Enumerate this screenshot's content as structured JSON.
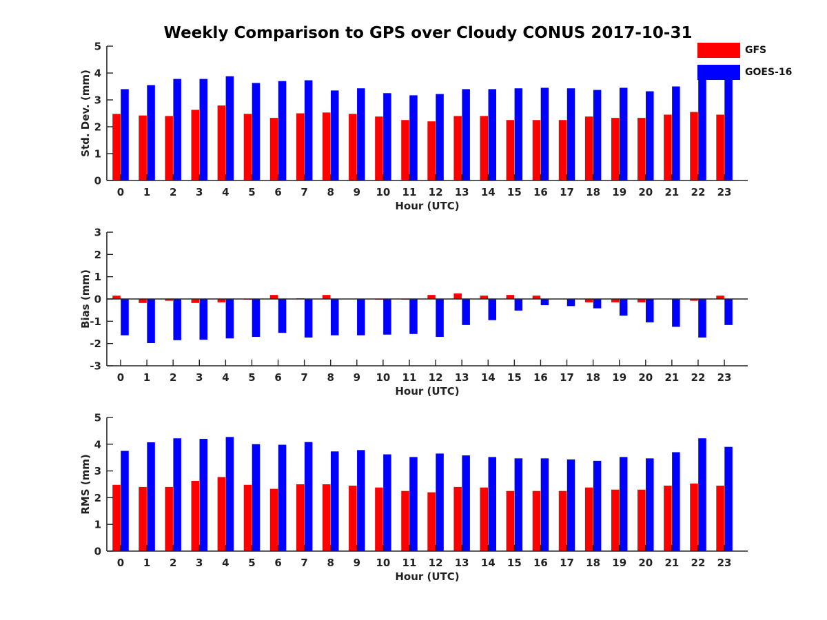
{
  "figure_title": "Weekly Comparison to GPS over Cloudy CONUS 2017-10-31",
  "colors": {
    "gfs": "#ff0000",
    "goes": "#0000ff",
    "axis": "#222222",
    "text": "#111111"
  },
  "legend": [
    {
      "name": "GFS",
      "color": "#ff0000"
    },
    {
      "name": "GOES-16",
      "color": "#0000ff"
    }
  ],
  "chart_data": [
    {
      "type": "bar",
      "xlabel": "Hour (UTC)",
      "ylabel": "Std. Dev. (mm)",
      "categories": [
        "0",
        "1",
        "2",
        "3",
        "4",
        "5",
        "6",
        "7",
        "8",
        "9",
        "10",
        "11",
        "12",
        "13",
        "14",
        "15",
        "16",
        "17",
        "18",
        "19",
        "20",
        "21",
        "22",
        "23"
      ],
      "ylim": [
        0,
        5
      ],
      "yticks": [
        0,
        1,
        2,
        3,
        4,
        5
      ],
      "grid": false,
      "series": [
        {
          "name": "GFS",
          "color": "#ff0000",
          "values": [
            2.48,
            2.42,
            2.4,
            2.63,
            2.79,
            2.48,
            2.33,
            2.5,
            2.53,
            2.48,
            2.38,
            2.25,
            2.2,
            2.4,
            2.4,
            2.25,
            2.25,
            2.25,
            2.38,
            2.33,
            2.33,
            2.45,
            2.55,
            2.45
          ]
        },
        {
          "name": "GOES-16",
          "color": "#0000ff",
          "values": [
            3.4,
            3.55,
            3.78,
            3.78,
            3.88,
            3.63,
            3.7,
            3.73,
            3.35,
            3.43,
            3.25,
            3.17,
            3.22,
            3.4,
            3.4,
            3.43,
            3.45,
            3.43,
            3.37,
            3.45,
            3.32,
            3.5,
            3.83,
            3.87
          ]
        }
      ]
    },
    {
      "type": "bar",
      "xlabel": "Hour (UTC)",
      "ylabel": "Bias (mm)",
      "categories": [
        "0",
        "1",
        "2",
        "3",
        "4",
        "5",
        "6",
        "7",
        "8",
        "9",
        "10",
        "11",
        "12",
        "13",
        "14",
        "15",
        "16",
        "17",
        "18",
        "19",
        "20",
        "21",
        "22",
        "23"
      ],
      "ylim": [
        -3,
        3
      ],
      "yticks": [
        -3,
        -2,
        -1,
        0,
        1,
        2,
        3
      ],
      "grid": false,
      "series": [
        {
          "name": "GFS",
          "color": "#ff0000",
          "values": [
            0.15,
            -0.18,
            -0.08,
            -0.18,
            -0.15,
            -0.03,
            0.18,
            0.03,
            0.18,
            0.0,
            -0.03,
            -0.03,
            0.18,
            0.25,
            0.15,
            0.18,
            0.15,
            0.0,
            -0.15,
            -0.15,
            -0.15,
            0.0,
            -0.08,
            0.15
          ]
        },
        {
          "name": "GOES-16",
          "color": "#0000ff",
          "values": [
            -1.63,
            -1.98,
            -1.85,
            -1.83,
            -1.77,
            -1.7,
            -1.52,
            -1.73,
            -1.63,
            -1.63,
            -1.6,
            -1.57,
            -1.7,
            -1.17,
            -0.95,
            -0.52,
            -0.28,
            -0.32,
            -0.42,
            -0.75,
            -1.05,
            -1.25,
            -1.73,
            -1.17
          ]
        }
      ]
    },
    {
      "type": "bar",
      "xlabel": "Hour (UTC)",
      "ylabel": "RMS (mm)",
      "categories": [
        "0",
        "1",
        "2",
        "3",
        "4",
        "5",
        "6",
        "7",
        "8",
        "9",
        "10",
        "11",
        "12",
        "13",
        "14",
        "15",
        "16",
        "17",
        "18",
        "19",
        "20",
        "21",
        "22",
        "23"
      ],
      "ylim": [
        0,
        5
      ],
      "yticks": [
        0,
        1,
        2,
        3,
        4,
        5
      ],
      "grid": false,
      "series": [
        {
          "name": "GFS",
          "color": "#ff0000",
          "values": [
            2.48,
            2.4,
            2.4,
            2.63,
            2.77,
            2.48,
            2.33,
            2.5,
            2.5,
            2.45,
            2.38,
            2.25,
            2.2,
            2.4,
            2.38,
            2.25,
            2.25,
            2.25,
            2.38,
            2.3,
            2.3,
            2.45,
            2.53,
            2.45
          ]
        },
        {
          "name": "GOES-16",
          "color": "#0000ff",
          "values": [
            3.75,
            4.07,
            4.22,
            4.2,
            4.27,
            4.0,
            3.98,
            4.08,
            3.73,
            3.78,
            3.62,
            3.52,
            3.65,
            3.58,
            3.52,
            3.47,
            3.47,
            3.43,
            3.38,
            3.52,
            3.47,
            3.7,
            4.22,
            3.9
          ]
        }
      ]
    }
  ]
}
